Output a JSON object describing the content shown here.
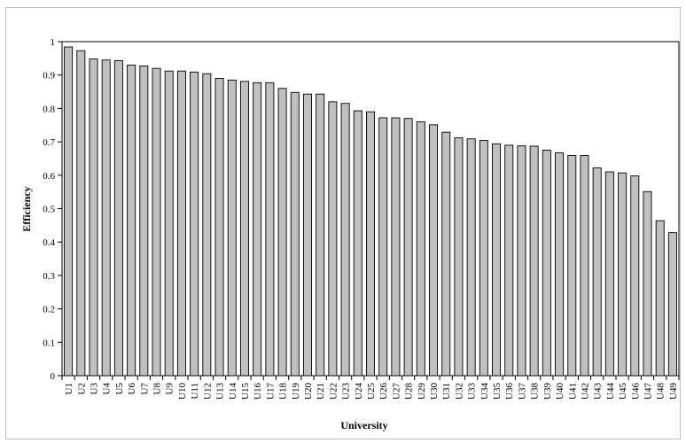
{
  "chart_data": {
    "type": "bar",
    "title": "",
    "xlabel": "University",
    "ylabel": "Efficiency",
    "ylim": [
      0,
      1
    ],
    "yticks": [
      "0",
      "0.1",
      "0.2",
      "0.3",
      "0.4",
      "0.5",
      "0.6",
      "0.7",
      "0.8",
      "0.9",
      "1"
    ],
    "grid": false,
    "legend": "none",
    "bar_color": "#c0c0c0",
    "bar_edge_color": "#000000",
    "categories": [
      "U1",
      "U2",
      "U3",
      "U4",
      "U5",
      "U6",
      "U7",
      "U8",
      "U9",
      "U10",
      "U11",
      "U12",
      "U13",
      "U14",
      "U15",
      "U16",
      "U17",
      "U18",
      "U19",
      "U20",
      "U21",
      "U22",
      "U23",
      "U24",
      "U25",
      "U26",
      "U27",
      "U28",
      "U29",
      "U30",
      "U31",
      "U32",
      "U33",
      "U34",
      "U35",
      "U36",
      "U37",
      "U38",
      "U39",
      "U40",
      "U41",
      "U42",
      "U43",
      "U44",
      "U45",
      "U46",
      "U47",
      "U48",
      "U49"
    ],
    "values": [
      0.984,
      0.973,
      0.948,
      0.945,
      0.943,
      0.93,
      0.927,
      0.92,
      0.912,
      0.912,
      0.909,
      0.904,
      0.89,
      0.885,
      0.881,
      0.877,
      0.877,
      0.86,
      0.848,
      0.843,
      0.843,
      0.82,
      0.815,
      0.793,
      0.79,
      0.772,
      0.772,
      0.77,
      0.76,
      0.751,
      0.729,
      0.712,
      0.709,
      0.704,
      0.694,
      0.69,
      0.688,
      0.687,
      0.675,
      0.667,
      0.659,
      0.659,
      0.622,
      0.61,
      0.607,
      0.598,
      0.551,
      0.464,
      0.428
    ]
  }
}
